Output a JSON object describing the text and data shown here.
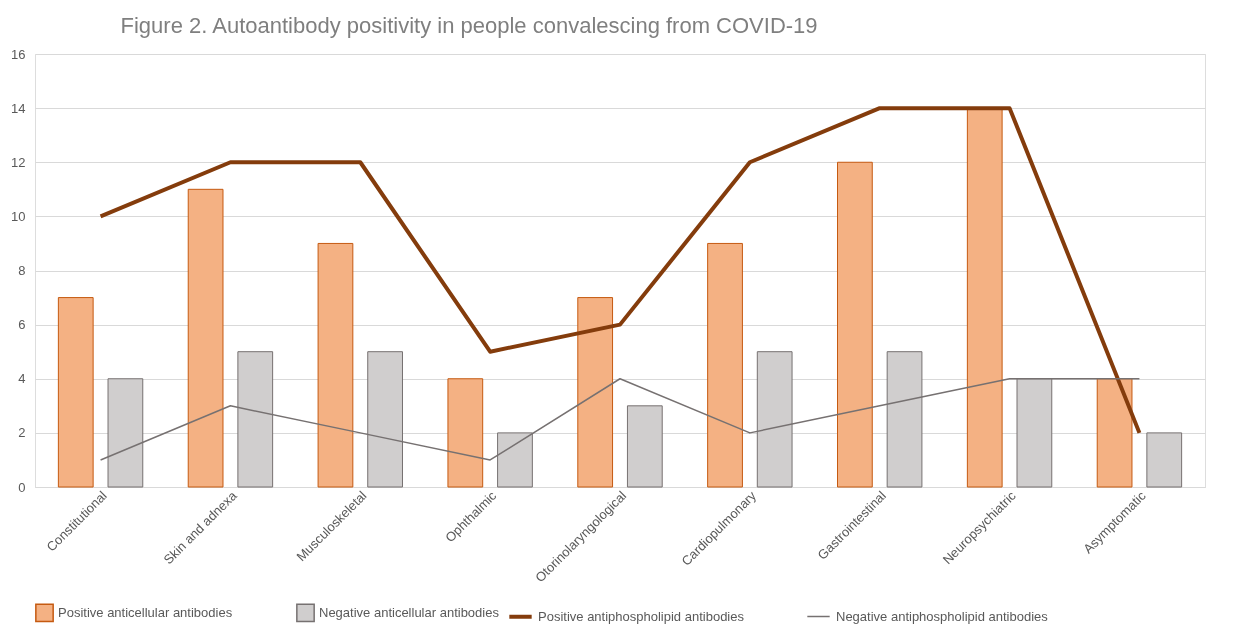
{
  "chart_data": {
    "type": "bar",
    "title": "Figure 2. Autoantibody positivity in people convalescing from COVID-19",
    "categories": [
      "Constitutional",
      "Skin and adnexa",
      "Musculoskeletal",
      "Ophthalmic",
      "Otorinolaryngological",
      "Cardiopulmonary",
      "Gastrointestinal",
      "Neuropsychiatric",
      "Asymptomatic"
    ],
    "series": [
      {
        "name": "Positive anticellular antibodies",
        "color": "#f4b183",
        "values": [
          7,
          11,
          9,
          4,
          7,
          9,
          12,
          14,
          4
        ]
      },
      {
        "name": "Negative anticellular antibodies",
        "color": "#d0cece",
        "values": [
          4,
          5,
          5,
          2,
          3,
          5,
          5,
          4,
          2
        ]
      },
      {
        "name": "Positive antiphospholipid antibodies",
        "type": "line",
        "color": "#843c0c",
        "values": [
          10,
          12,
          12,
          5,
          6,
          12,
          14,
          14,
          2
        ]
      },
      {
        "name": "Negative antiphospholipid antibodies",
        "type": "line",
        "color": "#767171",
        "values": [
          1,
          3,
          2,
          1,
          4,
          2,
          3,
          4,
          4
        ]
      }
    ],
    "ylim": [
      0,
      16
    ],
    "yticks": [
      0,
      2,
      4,
      6,
      8,
      10,
      12,
      14,
      16
    ],
    "grid": "y",
    "legend": "bottom",
    "marker": "none"
  }
}
